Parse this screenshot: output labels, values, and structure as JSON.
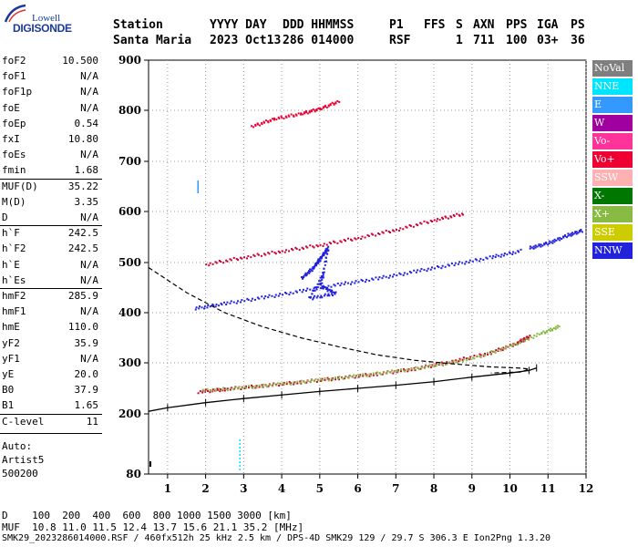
{
  "logo": {
    "top": "Lowell",
    "bottom": "DIGISONDE"
  },
  "header": {
    "row1": [
      "Station",
      "YYYY DAY",
      "DDD HHMMSS",
      "P1",
      "FFS",
      "S",
      "AXN",
      "PPS",
      "IGA",
      "PS"
    ],
    "row2": [
      "Santa Maria",
      "2023 Oct13",
      "286 014000",
      "RSF",
      "",
      "1",
      "711",
      "100",
      "03+",
      "36"
    ]
  },
  "params": [
    {
      "k": "foF2",
      "v": "10.500"
    },
    {
      "k": "foF1",
      "v": "N/A"
    },
    {
      "k": "foF1p",
      "v": "N/A"
    },
    {
      "k": "foE",
      "v": "N/A"
    },
    {
      "k": "foEp",
      "v": "0.54"
    },
    {
      "k": "fxI",
      "v": "10.80"
    },
    {
      "k": "foEs",
      "v": "N/A"
    },
    {
      "k": "fmin",
      "v": "1.68"
    },
    {
      "k": "MUF(D)",
      "v": "35.22"
    },
    {
      "k": "M(D)",
      "v": "3.35"
    },
    {
      "k": "D",
      "v": "N/A"
    },
    {
      "k": "h`F",
      "v": "242.5"
    },
    {
      "k": "h`F2",
      "v": "242.5"
    },
    {
      "k": "h`E",
      "v": "N/A"
    },
    {
      "k": "h`Es",
      "v": "N/A"
    },
    {
      "k": "hmF2",
      "v": "285.9"
    },
    {
      "k": "hmF1",
      "v": "N/A"
    },
    {
      "k": "hmE",
      "v": "110.0"
    },
    {
      "k": "yF2",
      "v": "35.9"
    },
    {
      "k": "yF1",
      "v": "N/A"
    },
    {
      "k": "yE",
      "v": "20.0"
    },
    {
      "k": "B0",
      "v": "37.9"
    },
    {
      "k": "B1",
      "v": "1.65"
    },
    {
      "k": "C-level",
      "v": "11"
    }
  ],
  "auto": [
    "Auto:",
    "Artist5",
    "500200"
  ],
  "legend": [
    {
      "label": "NoVal",
      "color": "#7f7f7f"
    },
    {
      "label": "NNE",
      "color": "#00e5ff"
    },
    {
      "label": "E",
      "color": "#3399ff"
    },
    {
      "label": "W",
      "color": "#a0009f"
    },
    {
      "label": "Vo-",
      "color": "#ff3399"
    },
    {
      "label": "Vo+",
      "color": "#ee0033"
    },
    {
      "label": "SSW",
      "color": "#ffb0b0"
    },
    {
      "label": "X-",
      "color": "#007700"
    },
    {
      "label": "X+",
      "color": "#88bb44"
    },
    {
      "label": "SSE",
      "color": "#cccc00"
    },
    {
      "label": "NNW",
      "color": "#2222dd"
    }
  ],
  "footer": {
    "d_row": "D    100  200  400  600  800 1000 1500 3000 [km]",
    "muf_row": "MUF  10.8 11.0 11.5 12.4 13.7 15.6 21.1 35.2 [MHz]",
    "file_row": "SMK29_2023286014000.RSF / 460fx512h 25 kHz 2.5 km / DPS-4D SMK29 129 / 29.7 S 306.3 E Ion2Png 1.3.20"
  },
  "chart_data": {
    "type": "scatter",
    "xlim": [
      0.5,
      12
    ],
    "ylim": [
      80,
      900
    ],
    "x_ticks": [
      1,
      2,
      3,
      4,
      5,
      6,
      7,
      8,
      9,
      10,
      11,
      12
    ],
    "y_ticks": [
      80,
      200,
      300,
      400,
      500,
      600,
      700,
      800,
      900
    ],
    "grid": "dotted",
    "series": [
      {
        "color": "#cc0033",
        "points": [
          [
            1.8,
            245
          ],
          [
            2.5,
            250
          ],
          [
            3.5,
            257
          ],
          [
            4.5,
            264
          ],
          [
            5.5,
            272
          ],
          [
            6.5,
            280
          ],
          [
            7.5,
            290
          ],
          [
            8.5,
            305
          ],
          [
            9.5,
            322
          ],
          [
            10.2,
            342
          ],
          [
            10.5,
            355
          ]
        ]
      },
      {
        "color": "#88bb44",
        "points": [
          [
            1.9,
            247
          ],
          [
            3,
            253
          ],
          [
            4,
            260
          ],
          [
            5,
            268
          ],
          [
            6,
            276
          ],
          [
            7,
            285
          ],
          [
            8,
            296
          ],
          [
            9,
            310
          ],
          [
            10,
            335
          ],
          [
            10.8,
            360
          ],
          [
            11.3,
            375
          ]
        ]
      },
      {
        "color": "#cc0033",
        "points": [
          [
            2,
            498
          ],
          [
            3,
            512
          ],
          [
            4,
            524
          ],
          [
            5,
            536
          ],
          [
            6,
            550
          ],
          [
            7,
            566
          ],
          [
            8,
            585
          ],
          [
            8.8,
            598
          ]
        ]
      },
      {
        "color": "#2222dd",
        "points": [
          [
            1.7,
            410
          ],
          [
            2.5,
            420
          ],
          [
            3.5,
            432
          ],
          [
            4.5,
            445
          ],
          [
            5.5,
            458
          ],
          [
            6.5,
            470
          ],
          [
            7.5,
            484
          ],
          [
            8.5,
            498
          ],
          [
            9.5,
            512
          ],
          [
            10.3,
            525
          ]
        ]
      },
      {
        "color": "#2222dd",
        "points": [
          [
            4.5,
            470
          ],
          [
            4.8,
            490
          ],
          [
            5,
            510
          ],
          [
            5.2,
            530
          ],
          [
            5,
            455
          ],
          [
            5.4,
            440
          ],
          [
            4.7,
            430
          ],
          [
            5.1,
            480
          ]
        ]
      },
      {
        "color": "#ee0033",
        "points": [
          [
            3.2,
            770
          ],
          [
            3.8,
            785
          ],
          [
            4.5,
            795
          ],
          [
            5,
            805
          ],
          [
            5.5,
            820
          ]
        ]
      },
      {
        "color": "#2222dd",
        "points": [
          [
            10.5,
            530
          ],
          [
            11,
            540
          ],
          [
            11.5,
            555
          ],
          [
            11.9,
            565
          ]
        ]
      }
    ],
    "curves": [
      {
        "name": "",
        "style": "dashed",
        "points": [
          [
            0.5,
            490
          ],
          [
            1.5,
            440
          ],
          [
            2.5,
            400
          ],
          [
            3.5,
            372
          ],
          [
            4.5,
            350
          ],
          [
            5.5,
            332
          ],
          [
            6.5,
            316
          ],
          [
            7.5,
            305
          ],
          [
            8.5,
            298
          ],
          [
            9.5,
            292
          ],
          [
            10.2,
            290
          ],
          [
            10.5,
            288
          ],
          [
            10.3,
            282
          ],
          [
            9.5,
            280
          ]
        ]
      },
      {
        "name": "",
        "style": "ticked",
        "points": [
          [
            0.5,
            205
          ],
          [
            1,
            212
          ],
          [
            2,
            222
          ],
          [
            3,
            230
          ],
          [
            4,
            237
          ],
          [
            5,
            244
          ],
          [
            6,
            250
          ],
          [
            7,
            256
          ],
          [
            8,
            263
          ],
          [
            9,
            272
          ],
          [
            10,
            280
          ],
          [
            10.5,
            285
          ],
          [
            10.7,
            290
          ]
        ]
      }
    ],
    "markers": [
      [
        0.5,
        100
      ]
    ]
  }
}
